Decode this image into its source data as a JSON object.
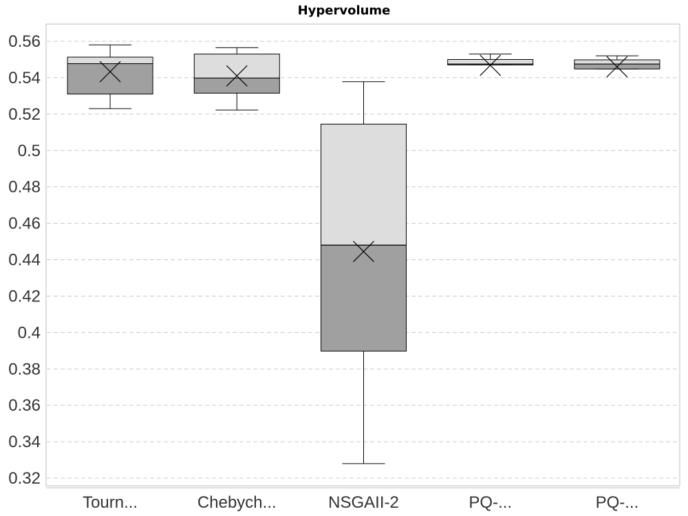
{
  "chart_data": {
    "type": "box",
    "title": "Hypervolume",
    "xlabel": "",
    "ylabel": "",
    "ylim": [
      0.315,
      0.569
    ],
    "y_ticks": [
      "0.32",
      "0.34",
      "0.36",
      "0.38",
      "0.4",
      "0.42",
      "0.44",
      "0.46",
      "0.48",
      "0.5",
      "0.52",
      "0.54",
      "0.56"
    ],
    "grid": true,
    "categories": [
      "Tourn...",
      "Chebych...",
      "NSGAII-2",
      "PQ-...",
      "PQ-..."
    ],
    "series": [
      {
        "name": "Tourn...",
        "min": 0.523,
        "q1": 0.531,
        "median": 0.5477,
        "q3": 0.5513,
        "max": 0.558,
        "mean": 0.5433
      },
      {
        "name": "Chebych...",
        "min": 0.5222,
        "q1": 0.5315,
        "median": 0.5398,
        "q3": 0.553,
        "max": 0.5565,
        "mean": 0.541
      },
      {
        "name": "NSGAII-2",
        "min": 0.328,
        "q1": 0.3898,
        "median": 0.448,
        "q3": 0.5145,
        "max": 0.5378,
        "mean": 0.4445
      },
      {
        "name": "PQ-...",
        "min": 0.547,
        "q1": 0.547,
        "median": 0.5475,
        "q3": 0.55,
        "max": 0.553,
        "mean": 0.5468
      },
      {
        "name": "PQ-...",
        "min": 0.5448,
        "q1": 0.5448,
        "median": 0.5475,
        "q3": 0.5498,
        "max": 0.552,
        "mean": 0.546
      }
    ]
  }
}
